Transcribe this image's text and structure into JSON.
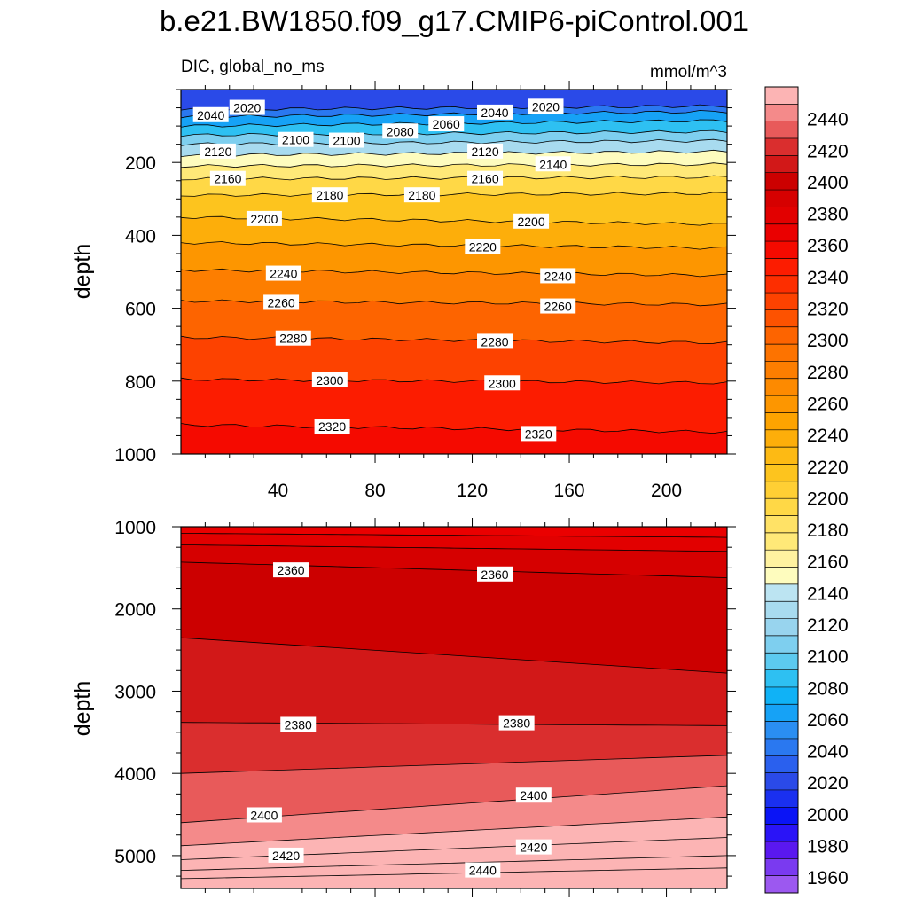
{
  "figure": {
    "title": "b.e21.BW1850.f09_g17.CMIP6-piControl.001",
    "left_string": "DIC, global_no_ms",
    "right_string": "mmol/m^3"
  },
  "chart_data": [
    {
      "type": "heatmap",
      "name": "upper-panel",
      "xlabel": "",
      "ylabel": "depth",
      "xlim": [
        0,
        225
      ],
      "ylim": [
        1000,
        0
      ],
      "xticks": [
        40,
        80,
        120,
        160,
        200
      ],
      "yticks": [
        200,
        400,
        600,
        800,
        1000
      ],
      "isolines": [
        {
          "level": 2020,
          "depth_start": 55,
          "depth_end": 45
        },
        {
          "level": 2040,
          "depth_start": 75,
          "depth_end": 60
        },
        {
          "level": 2060,
          "depth_start": 100,
          "depth_end": 85
        },
        {
          "level": 2080,
          "depth_start": 125,
          "depth_end": 115
        },
        {
          "level": 2100,
          "depth_start": 150,
          "depth_end": 140
        },
        {
          "level": 2120,
          "depth_start": 180,
          "depth_end": 170
        },
        {
          "level": 2140,
          "depth_start": 210,
          "depth_end": 205
        },
        {
          "level": 2160,
          "depth_start": 245,
          "depth_end": 240
        },
        {
          "level": 2180,
          "depth_start": 290,
          "depth_end": 285
        },
        {
          "level": 2200,
          "depth_start": 350,
          "depth_end": 370
        },
        {
          "level": 2220,
          "depth_start": 420,
          "depth_end": 435
        },
        {
          "level": 2240,
          "depth_start": 495,
          "depth_end": 510
        },
        {
          "level": 2260,
          "depth_start": 580,
          "depth_end": 590
        },
        {
          "level": 2280,
          "depth_start": 680,
          "depth_end": 695
        },
        {
          "level": 2300,
          "depth_start": 795,
          "depth_end": 805
        },
        {
          "level": 2320,
          "depth_start": 920,
          "depth_end": 940
        }
      ],
      "contour_labels": [
        {
          "text": "2020",
          "x": 20,
          "depth": 50
        },
        {
          "text": "2040",
          "x": 5,
          "depth": 70
        },
        {
          "text": "2020",
          "x": 143,
          "depth": 47
        },
        {
          "text": "2040",
          "x": 122,
          "depth": 63
        },
        {
          "text": "2060",
          "x": 102,
          "depth": 95
        },
        {
          "text": "2080",
          "x": 83,
          "depth": 115
        },
        {
          "text": "2100",
          "x": 40,
          "depth": 138
        },
        {
          "text": "2100",
          "x": 61,
          "depth": 140
        },
        {
          "text": "2120",
          "x": 8,
          "depth": 170
        },
        {
          "text": "2120",
          "x": 118,
          "depth": 170
        },
        {
          "text": "2140",
          "x": 146,
          "depth": 205
        },
        {
          "text": "2160",
          "x": 12,
          "depth": 245
        },
        {
          "text": "2160",
          "x": 118,
          "depth": 245
        },
        {
          "text": "2180",
          "x": 54,
          "depth": 290
        },
        {
          "text": "2180",
          "x": 92,
          "depth": 290
        },
        {
          "text": "2200",
          "x": 27,
          "depth": 355
        },
        {
          "text": "2200",
          "x": 137,
          "depth": 362
        },
        {
          "text": "2220",
          "x": 117,
          "depth": 432
        },
        {
          "text": "2240",
          "x": 35,
          "depth": 505
        },
        {
          "text": "2240",
          "x": 148,
          "depth": 512
        },
        {
          "text": "2260",
          "x": 34,
          "depth": 585
        },
        {
          "text": "2260",
          "x": 148,
          "depth": 595
        },
        {
          "text": "2280",
          "x": 39,
          "depth": 683
        },
        {
          "text": "2280",
          "x": 122,
          "depth": 692
        },
        {
          "text": "2300",
          "x": 54,
          "depth": 798
        },
        {
          "text": "2300",
          "x": 125,
          "depth": 806
        },
        {
          "text": "2320",
          "x": 55,
          "depth": 925
        },
        {
          "text": "2320",
          "x": 140,
          "depth": 945
        }
      ]
    },
    {
      "type": "heatmap",
      "name": "lower-panel",
      "xlabel": "",
      "ylabel": "depth",
      "xlim": [
        0,
        225
      ],
      "ylim": [
        5400,
        1000
      ],
      "yticks": [
        1000,
        2000,
        3000,
        4000,
        5000
      ],
      "isolines": [
        {
          "level": 2340,
          "depth_start": 1080,
          "depth_end": 1130
        },
        {
          "level": 2350,
          "depth_start": 1220,
          "depth_end": 1300
        },
        {
          "level": 2360,
          "depth_start": 1430,
          "depth_end": 1620
        },
        {
          "level": 2370,
          "depth_start": 2350,
          "depth_end": 2780
        },
        {
          "level": 2380,
          "depth_start": 3380,
          "depth_end": 3420
        },
        {
          "level": 2390,
          "depth_start": 4000,
          "depth_end": 3780
        },
        {
          "level": 2400,
          "depth_start": 4600,
          "depth_end": 4150
        },
        {
          "level": 2410,
          "depth_start": 4880,
          "depth_end": 4530
        },
        {
          "level": 2420,
          "depth_start": 5050,
          "depth_end": 4780
        },
        {
          "level": 2430,
          "depth_start": 5180,
          "depth_end": 5000
        },
        {
          "level": 2440,
          "depth_start": 5280,
          "depth_end": 5150
        }
      ],
      "contour_labels": [
        {
          "text": "2360",
          "x": 38,
          "depth": 1530
        },
        {
          "text": "2360",
          "x": 122,
          "depth": 1580
        },
        {
          "text": "2380",
          "x": 41,
          "depth": 3410
        },
        {
          "text": "2380",
          "x": 131,
          "depth": 3390
        },
        {
          "text": "2400",
          "x": 27,
          "depth": 4510
        },
        {
          "text": "2400",
          "x": 138,
          "depth": 4270
        },
        {
          "text": "2420",
          "x": 36,
          "depth": 5000
        },
        {
          "text": "2420",
          "x": 138,
          "depth": 4900
        },
        {
          "text": "2440",
          "x": 117,
          "depth": 5180
        }
      ]
    }
  ],
  "colorbar": {
    "min": 1950,
    "max": 2460,
    "step": 20,
    "labels": [
      "1960",
      "1980",
      "2000",
      "2020",
      "2040",
      "2060",
      "2080",
      "2100",
      "2120",
      "2140",
      "2160",
      "2180",
      "2200",
      "2220",
      "2240",
      "2260",
      "2280",
      "2300",
      "2320",
      "2340",
      "2360",
      "2380",
      "2400",
      "2420",
      "2440"
    ],
    "colors": [
      "#9c58f0",
      "#7a3af0",
      "#5a18f0",
      "#2a14f7",
      "#0a14f6",
      "#1a30f0",
      "#2a4ae8",
      "#2a60ee",
      "#2a78f0",
      "#2a8ef2",
      "#16a2f6",
      "#10b2f6",
      "#2ec0f2",
      "#5ccaf0",
      "#7ecfef",
      "#98d4ee",
      "#a8dbef",
      "#bce4f2",
      "#fefcbe",
      "#fff2a0",
      "#ffe978",
      "#ffe266",
      "#ffd846",
      "#ffcf34",
      "#fdc41e",
      "#fdba14",
      "#fdae0a",
      "#fda300",
      "#fd9600",
      "#fd8a00",
      "#fd7e00",
      "#fd7300",
      "#fd6400",
      "#fd5200",
      "#fd4200",
      "#fd2e00",
      "#fc1c00",
      "#f50a00",
      "#ea0000",
      "#e20000",
      "#d60000",
      "#cc0000",
      "#d21818",
      "#da2e2e",
      "#e85a5a",
      "#f48a8a",
      "#fcb4b4"
    ]
  }
}
